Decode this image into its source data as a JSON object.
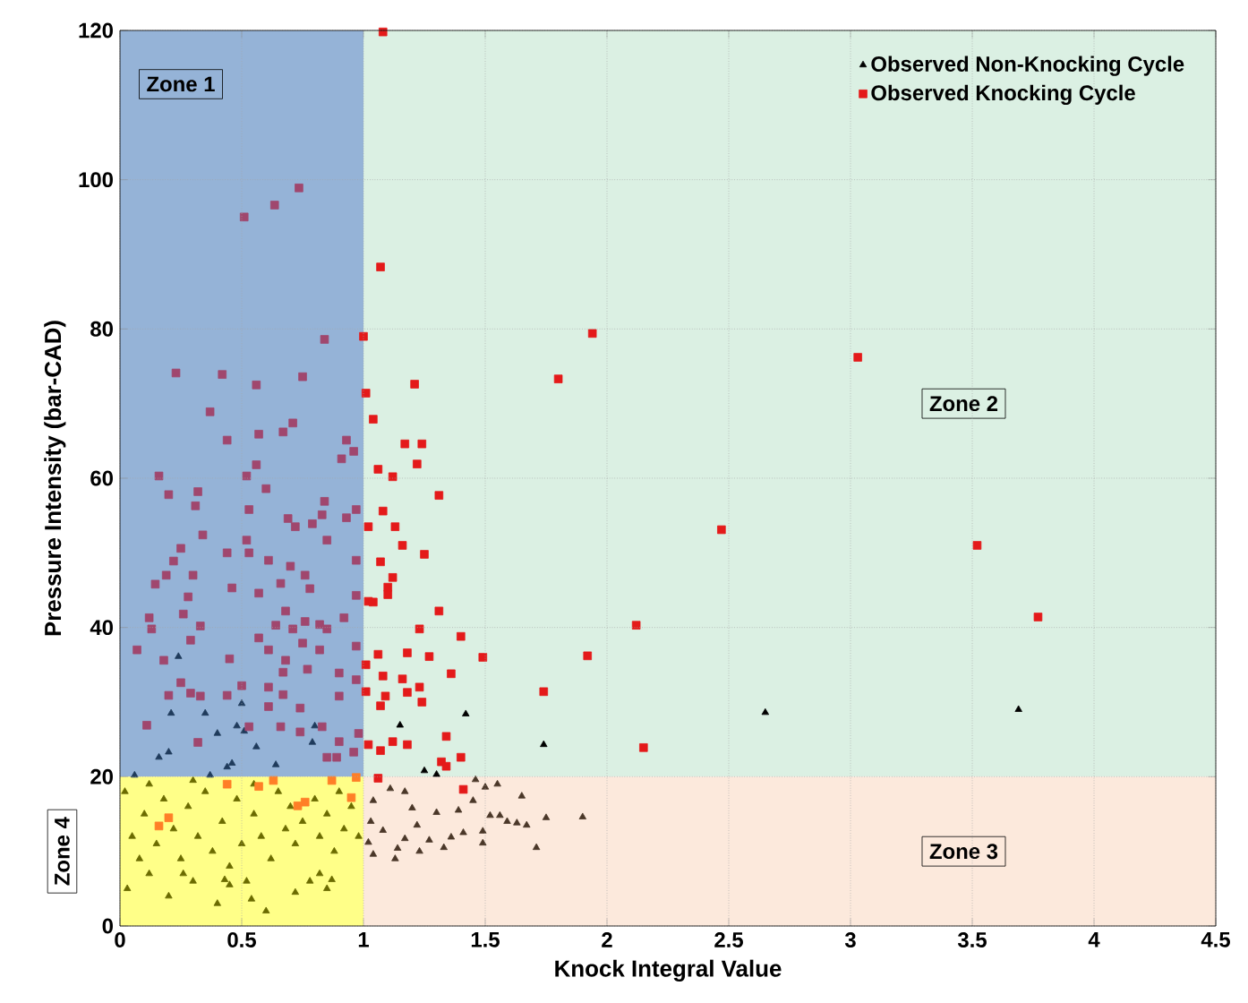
{
  "chart_data": {
    "type": "scatter",
    "xlabel": "Knock Integral Value",
    "ylabel": "Pressure Intensity (bar-CAD)",
    "xlim": [
      0,
      4.5
    ],
    "ylim": [
      0,
      120
    ],
    "xticks": [
      0,
      0.5,
      1,
      1.5,
      2,
      2.5,
      3,
      3.5,
      4,
      4.5
    ],
    "yticks": [
      0,
      20,
      40,
      60,
      80,
      100,
      120
    ],
    "grid": true,
    "legend": "top right",
    "bands": [
      {
        "axis": "y",
        "from": 20,
        "to": 120,
        "color": "#dbf0e3",
        "label": "Zone 2"
      },
      {
        "axis": "y",
        "from": 0,
        "to": 20,
        "color": "#fce9dc",
        "label": "Zone 3"
      },
      {
        "axis": "x",
        "from": 0,
        "to": 1,
        "color": "#95b3d7",
        "label": "Zone 1"
      },
      {
        "axis": "x",
        "from": 0,
        "to": 1,
        "color": "#ffff88",
        "label": "Zone 4"
      }
    ],
    "series": [
      {
        "name": "Observed Non-Knocking Cycle",
        "color": "#000000",
        "marker": "triangle",
        "x": [
          1.15,
          1.42,
          1.74,
          1.25,
          1.3,
          2.65,
          3.69,
          0.21,
          0.24,
          0.35,
          0.4,
          0.48,
          0.5,
          0.51,
          0.2,
          0.16,
          0.46,
          0.56,
          0.64,
          0.79,
          0.8,
          0.44,
          0.37,
          0.06,
          0.02,
          0.05,
          0.03,
          0.08,
          0.1,
          0.12,
          0.15,
          0.18,
          0.2,
          0.22,
          0.25,
          0.28,
          0.3,
          0.32,
          0.35,
          0.38,
          0.4,
          0.42,
          0.45,
          0.48,
          0.5,
          0.52,
          0.55,
          0.58,
          0.6,
          0.62,
          0.65,
          0.68,
          0.7,
          0.72,
          0.75,
          0.78,
          0.8,
          0.82,
          0.85,
          0.88,
          0.9,
          0.92,
          0.95,
          0.98,
          0.12,
          0.3,
          0.55,
          0.72,
          0.85,
          0.45,
          0.82,
          0.87,
          0.54,
          0.43,
          0.26,
          1.46,
          1.5,
          1.65,
          1.75,
          1.9,
          1.71,
          1.49,
          1.41,
          1.13,
          1.17,
          1.2,
          1.22,
          1.27,
          1.33,
          1.3,
          1.39,
          1.45,
          1.56,
          1.59,
          1.63,
          1.67,
          1.52,
          1.17,
          1.11,
          1.04,
          1.03,
          1.08,
          1.02,
          1.04,
          1.14,
          1.23,
          1.36,
          1.49,
          1.55
        ],
        "values": [
          26.9,
          28.4,
          24.3,
          20.8,
          20.3,
          28.6,
          29.0,
          28.5,
          36.1,
          28.5,
          25.8,
          26.8,
          29.8,
          26.1,
          23.3,
          22.6,
          21.8,
          24.0,
          21.6,
          24.6,
          26.8,
          21.3,
          20.2,
          20.2,
          18,
          12,
          5,
          9,
          15,
          7,
          11,
          17,
          4,
          13,
          9,
          16,
          6,
          12,
          18,
          10,
          3,
          14,
          8,
          17,
          11,
          6,
          15,
          12,
          2,
          9,
          18,
          13,
          16,
          11,
          14,
          6,
          17,
          12,
          15,
          10,
          18,
          13,
          16,
          12,
          19,
          19.5,
          19,
          4.5,
          5,
          5.5,
          7.0,
          6.2,
          3.6,
          6.2,
          7.0,
          19.6,
          18.6,
          17.4,
          14.5,
          14.6,
          10.5,
          11.1,
          12.5,
          9.0,
          11.7,
          15.8,
          13.5,
          11.5,
          10.5,
          15.2,
          15.5,
          16.8,
          14.8,
          14.0,
          13.8,
          13.5,
          14.8,
          18.0,
          18.4,
          16.8,
          14.0,
          12.8,
          11.2,
          9.6,
          10.4,
          10.0,
          11.9,
          12.7,
          19.0
        ],
        "colors": [
          "#000000",
          "#000000",
          "#000000",
          "#000000",
          "#000000",
          "#000000",
          "#000000",
          "#1f3b5c",
          "#1f3b5c",
          "#1f3b5c",
          "#1f3b5c",
          "#1f3b5c",
          "#1f3b5c",
          "#1f3b5c",
          "#1f3b5c",
          "#1f3b5c",
          "#1f3b5c",
          "#1f3b5c",
          "#1f3b5c",
          "#1f3b5c",
          "#1f3b5c",
          "#1f3b5c",
          "#1f3b5c",
          "#1f3b5c",
          "#6b6b00",
          "#6b6b00",
          "#6b6b00",
          "#6b6b00",
          "#6b6b00",
          "#6b6b00",
          "#6b6b00",
          "#6b6b00",
          "#6b6b00",
          "#6b6b00",
          "#6b6b00",
          "#6b6b00",
          "#6b6b00",
          "#6b6b00",
          "#6b6b00",
          "#6b6b00",
          "#6b6b00",
          "#6b6b00",
          "#6b6b00",
          "#6b6b00",
          "#6b6b00",
          "#6b6b00",
          "#6b6b00",
          "#6b6b00",
          "#6b6b00",
          "#6b6b00",
          "#6b6b00",
          "#6b6b00",
          "#6b6b00",
          "#6b6b00",
          "#6b6b00",
          "#6b6b00",
          "#6b6b00",
          "#6b6b00",
          "#6b6b00",
          "#6b6b00",
          "#6b6b00",
          "#6b6b00",
          "#6b6b00",
          "#6b6b00",
          "#6b6b00",
          "#6b6b00",
          "#6b6b00",
          "#6b6b00",
          "#6b6b00",
          "#6b6b00",
          "#6b6b00",
          "#6b6b00",
          "#6b6b00",
          "#6b6b00",
          "#6b6b00",
          "#4a3728",
          "#4a3728",
          "#4a3728",
          "#4a3728",
          "#4a3728",
          "#4a3728",
          "#4a3728",
          "#4a3728",
          "#4a3728",
          "#4a3728",
          "#4a3728",
          "#4a3728",
          "#4a3728",
          "#4a3728",
          "#4a3728",
          "#4a3728",
          "#4a3728",
          "#4a3728",
          "#4a3728",
          "#4a3728",
          "#4a3728",
          "#4a3728",
          "#4a3728",
          "#4a3728",
          "#4a3728",
          "#4a3728",
          "#4a3728",
          "#4a3728",
          "#4a3728",
          "#4a3728",
          "#4a3728",
          "#4a3728",
          "#4a3728",
          "#4a3728"
        ]
      },
      {
        "name": "Observed Knocking Cycle",
        "color": "#e41a1a",
        "marker": "square",
        "x": [
          1.08,
          1.07,
          1.0,
          1.94,
          1.21,
          1.8,
          1.01,
          1.04,
          1.17,
          1.24,
          1.22,
          1.06,
          1.12,
          1.31,
          1.08,
          1.02,
          1.13,
          1.16,
          1.25,
          2.47,
          1.07,
          1.12,
          1.1,
          1.1,
          1.02,
          1.04,
          1.31,
          2.12,
          1.23,
          1.4,
          1.49,
          1.92,
          1.06,
          1.18,
          1.27,
          1.01,
          1.08,
          1.16,
          1.36,
          1.01,
          1.18,
          1.23,
          1.09,
          1.24,
          1.74,
          1.07,
          1.34,
          1.02,
          1.07,
          1.12,
          1.18,
          1.4,
          1.32,
          1.34,
          2.15,
          1.06,
          1.41,
          3.03,
          3.52,
          3.77,
          0.735,
          0.635,
          0.51,
          0.84,
          0.23,
          0.42,
          0.75,
          0.56,
          0.37,
          0.71,
          0.67,
          0.57,
          0.44,
          0.93,
          0.91,
          0.96,
          0.56,
          0.16,
          0.52,
          0.2,
          0.6,
          0.32,
          0.31,
          0.84,
          0.53,
          0.69,
          0.83,
          0.93,
          0.97,
          0.72,
          0.34,
          0.79,
          0.85,
          0.52,
          0.25,
          0.22,
          0.44,
          0.53,
          0.61,
          0.7,
          0.97,
          0.19,
          0.3,
          0.145,
          0.76,
          0.66,
          0.46,
          0.57,
          0.78,
          0.28,
          0.97,
          0.68,
          0.26,
          0.12,
          0.76,
          0.92,
          0.82,
          0.13,
          0.33,
          0.64,
          0.71,
          0.57,
          0.85,
          0.07,
          0.29,
          0.75,
          0.61,
          0.18,
          0.45,
          0.68,
          0.82,
          0.97,
          0.9,
          0.25,
          0.67,
          0.77,
          0.29,
          0.5,
          0.61,
          0.2,
          0.33,
          0.44,
          0.67,
          0.9,
          0.97,
          0.61,
          0.74,
          0.11,
          0.32,
          0.66,
          0.74,
          0.83,
          0.9,
          0.96,
          0.98,
          0.89,
          0.85,
          0.53,
          0.97,
          0.44,
          0.57,
          0.63,
          0.76,
          0.73,
          0.95,
          0.2,
          0.16,
          0.87
        ],
        "values": [
          119.8,
          88.3,
          79,
          79.4,
          72.6,
          73.3,
          71.4,
          67.9,
          64.6,
          64.6,
          61.9,
          61.2,
          60.2,
          57.7,
          55.6,
          53.5,
          53.5,
          51.0,
          49.8,
          53.1,
          48.8,
          46.7,
          45.4,
          44.4,
          43.5,
          43.4,
          42.2,
          40.3,
          39.8,
          38.8,
          36.0,
          36.2,
          36.4,
          36.6,
          36.1,
          35.0,
          33.5,
          33.1,
          33.8,
          31.4,
          31.3,
          32.0,
          30.8,
          30.0,
          31.4,
          29.5,
          25.4,
          24.3,
          23.5,
          24.7,
          24.3,
          22.6,
          22.0,
          21.4,
          23.9,
          19.8,
          18.3,
          76.2,
          51.0,
          41.4,
          98.9,
          96.6,
          95.0,
          78.6,
          74.1,
          73.9,
          73.6,
          72.5,
          68.9,
          67.4,
          66.2,
          65.9,
          65.1,
          65.1,
          62.6,
          63.6,
          61.8,
          60.3,
          60.3,
          57.8,
          58.6,
          58.2,
          56.3,
          56.9,
          55.8,
          54.6,
          55.1,
          54.7,
          55.8,
          53.5,
          52.4,
          53.9,
          51.7,
          51.7,
          50.6,
          48.9,
          50.0,
          50.0,
          49.0,
          48.2,
          49.0,
          47.0,
          47.0,
          45.8,
          47.0,
          45.9,
          45.3,
          44.6,
          45.2,
          44.1,
          44.3,
          42.2,
          41.8,
          41.3,
          40.8,
          41.3,
          40.4,
          39.8,
          40.2,
          40.3,
          39.8,
          38.6,
          39.8,
          37.0,
          38.3,
          37.9,
          37.0,
          35.6,
          35.8,
          35.6,
          37.0,
          37.5,
          33.9,
          32.6,
          34.0,
          34.4,
          31.2,
          32.2,
          32.0,
          30.9,
          30.8,
          30.9,
          31.0,
          30.8,
          33.0,
          29.4,
          29.2,
          26.9,
          24.6,
          26.7,
          26.0,
          26.7,
          24.7,
          23.3,
          25.8,
          22.6,
          22.6,
          26.7,
          19.9,
          19.0,
          18.7,
          19.5,
          16.6,
          16.1,
          17.2,
          14.5,
          13.4,
          19.5
        ],
        "colors": [
          "#e41a1a",
          "#e41a1a",
          "#e41a1a",
          "#e41a1a",
          "#e41a1a",
          "#e41a1a",
          "#e41a1a",
          "#e41a1a",
          "#e41a1a",
          "#e41a1a",
          "#e41a1a",
          "#e41a1a",
          "#e41a1a",
          "#e41a1a",
          "#e41a1a",
          "#e41a1a",
          "#e41a1a",
          "#e41a1a",
          "#e41a1a",
          "#e41a1a",
          "#e41a1a",
          "#e41a1a",
          "#e41a1a",
          "#e41a1a",
          "#e41a1a",
          "#e41a1a",
          "#e41a1a",
          "#e41a1a",
          "#e41a1a",
          "#e41a1a",
          "#e41a1a",
          "#e41a1a",
          "#e41a1a",
          "#e41a1a",
          "#e41a1a",
          "#e41a1a",
          "#e41a1a",
          "#e41a1a",
          "#e41a1a",
          "#e41a1a",
          "#e41a1a",
          "#e41a1a",
          "#e41a1a",
          "#e41a1a",
          "#e41a1a",
          "#e41a1a",
          "#e41a1a",
          "#e41a1a",
          "#e41a1a",
          "#e41a1a",
          "#e41a1a",
          "#e41a1a",
          "#e41a1a",
          "#e41a1a",
          "#e41a1a",
          "#e41a1a",
          "#e41a1a",
          "#e41a1a",
          "#e41a1a",
          "#e41a1a",
          "#a0476e",
          "#a0476e",
          "#a0476e",
          "#a0476e",
          "#a0476e",
          "#a0476e",
          "#a0476e",
          "#a0476e",
          "#a0476e",
          "#a0476e",
          "#a0476e",
          "#a0476e",
          "#a0476e",
          "#a0476e",
          "#a0476e",
          "#a0476e",
          "#a0476e",
          "#a0476e",
          "#a0476e",
          "#a0476e",
          "#a0476e",
          "#a0476e",
          "#a0476e",
          "#a0476e",
          "#a0476e",
          "#a0476e",
          "#a0476e",
          "#a0476e",
          "#a0476e",
          "#a0476e",
          "#a0476e",
          "#a0476e",
          "#a0476e",
          "#a0476e",
          "#a0476e",
          "#a0476e",
          "#a0476e",
          "#a0476e",
          "#a0476e",
          "#a0476e",
          "#a0476e",
          "#a0476e",
          "#a0476e",
          "#a0476e",
          "#a0476e",
          "#a0476e",
          "#a0476e",
          "#a0476e",
          "#a0476e",
          "#a0476e",
          "#a0476e",
          "#a0476e",
          "#a0476e",
          "#a0476e",
          "#a0476e",
          "#a0476e",
          "#a0476e",
          "#a0476e",
          "#a0476e",
          "#a0476e",
          "#a0476e",
          "#a0476e",
          "#a0476e",
          "#a0476e",
          "#a0476e",
          "#a0476e",
          "#a0476e",
          "#a0476e",
          "#a0476e",
          "#a0476e",
          "#a0476e",
          "#a0476e",
          "#a0476e",
          "#a0476e",
          "#a0476e",
          "#a0476e",
          "#a0476e",
          "#a0476e",
          "#a0476e",
          "#a0476e",
          "#a0476e",
          "#a0476e",
          "#a0476e",
          "#a0476e",
          "#a0476e",
          "#a0476e",
          "#a0476e",
          "#a0476e",
          "#a0476e",
          "#a0476e",
          "#a0476e",
          "#a0476e",
          "#a0476e",
          "#a0476e",
          "#a0476e",
          "#a0476e",
          "#a0476e",
          "#a0476e",
          "#ff7f27",
          "#ff7f27",
          "#ff7f27",
          "#ff7f27",
          "#ff7f27",
          "#ff7f27",
          "#ff7f27",
          "#ff7f27",
          "#ff7f27",
          "#ff7f27"
        ]
      }
    ]
  }
}
